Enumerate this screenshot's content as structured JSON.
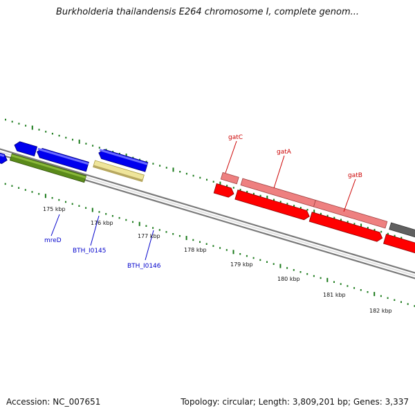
{
  "title": "Burkholderia thailandensis E264 chromosome I, complete genom...",
  "footer": {
    "accession": "Accession: NC_007651",
    "topology": "Topology: circular; Length: 3,809,201 bp; Genes: 3,337"
  },
  "kbp_labels": [
    "175 kbp",
    "176 kbp",
    "177 kbp",
    "178 kbp",
    "179 kbp",
    "180 kbp",
    "181 kbp",
    "182 kbp"
  ],
  "gene_labels": [
    {
      "text": "mreD",
      "color": "#0000cc"
    },
    {
      "text": "BTH_I0145",
      "color": "#0000cc"
    },
    {
      "text": "BTH_I0146",
      "color": "#0000cc"
    },
    {
      "text": "gatC",
      "color": "#cc0000"
    },
    {
      "text": "gatA",
      "color": "#cc0000"
    },
    {
      "text": "gatB",
      "color": "#cc0000"
    }
  ],
  "colors": {
    "cds_blue": "#0000ee",
    "gene_green": "#5a8a1a",
    "gene_yellow": "#efe59a",
    "gene_pink": "#ee8080",
    "cds_red": "#ff0000",
    "gene_gray": "#606060",
    "tick_green": "#1a7a1a",
    "backbone": "#888888"
  }
}
